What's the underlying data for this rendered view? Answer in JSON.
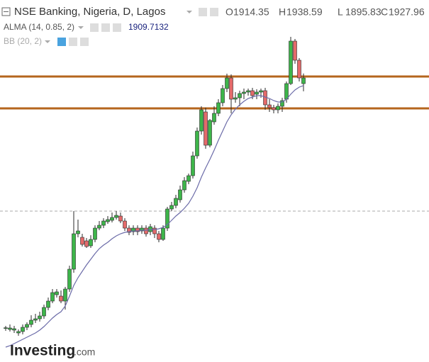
{
  "chart_data": {
    "type": "candlestick",
    "title": "NSE Banking, Nigeria, D, Lagos",
    "ohlc_labels": [
      "O",
      "H",
      "L",
      "C"
    ],
    "open": [
      1327.9,
      1324.5,
      1322.8,
      1316,
      1319.4,
      1329.6,
      1336.4,
      1346.6,
      1350,
      1356.8,
      1377.2,
      1392.5,
      1407.8,
      1404.4,
      1392.5,
      1421.4,
      1469,
      1554,
      1545.5,
      1537,
      1525.1,
      1540.4,
      1567.6,
      1574.4,
      1582.9,
      1586.3,
      1593.1,
      1596.5,
      1584.6,
      1567.6,
      1559.1,
      1567.6,
      1560.8,
      1567.6,
      1559.1,
      1567.6,
      1554,
      1540.4,
      1567.6,
      1613.5,
      1622,
      1635.6,
      1659.4,
      1679.8,
      1693.4,
      1741,
      1800.5,
      1846.4,
      1766.5,
      1822.6,
      1843,
      1868.5,
      1902.5,
      1928,
      1877,
      1880.4,
      1890.6,
      1894,
      1897.4,
      1888.9,
      1894,
      1897.4,
      1863.4,
      1856.6,
      1851.5,
      1860,
      1877,
      1914.4,
      2016.4,
      1970.5,
      1914.35
    ],
    "high": [
      1333,
      1336.4,
      1333,
      1324.5,
      1336.4,
      1341.5,
      1358.5,
      1361.9,
      1367,
      1384,
      1401,
      1421.4,
      1421.4,
      1418,
      1426.5,
      1477.5,
      1608.4,
      1588,
      1554,
      1543.8,
      1550.6,
      1574.4,
      1584.6,
      1591.4,
      1596.5,
      1605,
      1608.4,
      1605,
      1591.4,
      1574.4,
      1574.4,
      1574.4,
      1574.4,
      1574.4,
      1577.8,
      1574.4,
      1560.8,
      1574.4,
      1618.6,
      1630.5,
      1647.5,
      1669.6,
      1690,
      1698.5,
      1751.2,
      1809,
      1860,
      1856.6,
      1829.4,
      1860,
      1877,
      1911,
      1938.2,
      1936.5,
      1894,
      1897.4,
      1902.5,
      1902.5,
      1904.2,
      1900.8,
      1902.5,
      1904.2,
      1877,
      1863.4,
      1866.8,
      1880.4,
      1919.5,
      2026.6,
      2021.5,
      1975.6,
      1938.59
    ],
    "low": [
      1321.1,
      1319.4,
      1316,
      1309.2,
      1312.6,
      1322.8,
      1329.6,
      1339.8,
      1343.2,
      1350,
      1370.4,
      1387.4,
      1401,
      1387.4,
      1372.1,
      1414.6,
      1460.5,
      1545.5,
      1523.4,
      1520,
      1520,
      1533.6,
      1562.5,
      1567.6,
      1577.8,
      1581.2,
      1588,
      1579.5,
      1560.8,
      1550.6,
      1550.6,
      1550.6,
      1554,
      1547.2,
      1550.6,
      1543.8,
      1533.6,
      1537,
      1560.8,
      1608.4,
      1615.2,
      1628.8,
      1652.6,
      1673,
      1686.6,
      1734.2,
      1792,
      1758,
      1761.4,
      1815.8,
      1836.2,
      1860,
      1894,
      1843,
      1868.5,
      1860,
      1877,
      1885.5,
      1877,
      1877,
      1880.4,
      1851.5,
      1846.4,
      1843,
      1843,
      1846.4,
      1868.5,
      1911,
      1962,
      1919.5,
      1895.83
    ],
    "close": [
      1328.5,
      1327.9,
      1326.2,
      1319.4,
      1329.6,
      1336.4,
      1346.6,
      1350,
      1356.8,
      1377.2,
      1392.5,
      1412.9,
      1414.6,
      1392.5,
      1421.4,
      1469,
      1554,
      1560.8,
      1528.5,
      1523.4,
      1540.4,
      1567.6,
      1574.4,
      1584.6,
      1588,
      1593.1,
      1598.2,
      1584.6,
      1567.6,
      1557.4,
      1567.6,
      1559.1,
      1567.6,
      1554,
      1571,
      1554,
      1540.4,
      1567.6,
      1613.5,
      1622,
      1639,
      1659.4,
      1681.5,
      1693.4,
      1741,
      1800.5,
      1851.5,
      1766.5,
      1826,
      1843,
      1868.5,
      1902.5,
      1928,
      1877,
      1880.4,
      1890.6,
      1894,
      1897.4,
      1885.5,
      1894,
      1897.4,
      1863.4,
      1856.6,
      1851.5,
      1860,
      1873.6,
      1914.4,
      2016.4,
      1970.5,
      1928,
      1927.96
    ],
    "up_color": "#3db54a",
    "down_color": "#e46a6a",
    "outline_color": "#2b2b2b",
    "overlays": [
      {
        "name": "ALMA (14, 0.85, 2)",
        "color": "#6b6ba8",
        "values": [
          1282,
          1285.4,
          1290.5,
          1295.6,
          1300.7,
          1305.8,
          1310.9,
          1316,
          1322.8,
          1331.3,
          1341.5,
          1351.7,
          1360.2,
          1367,
          1380.6,
          1404.4,
          1429.9,
          1448.6,
          1463.9,
          1479.2,
          1492.8,
          1506.4,
          1518.3,
          1526.8,
          1533.6,
          1542.1,
          1548.9,
          1554,
          1557.4,
          1559.1,
          1560.8,
          1560.8,
          1562.5,
          1562.5,
          1564.2,
          1564.2,
          1565.9,
          1569.3,
          1576.1,
          1586.3,
          1596.5,
          1605,
          1615.2,
          1627.1,
          1644.1,
          1664.5,
          1690,
          1712.1,
          1732.5,
          1754.6,
          1778.4,
          1800.5,
          1822.6,
          1839.6,
          1853.2,
          1863.4,
          1871.9,
          1878.7,
          1882.1,
          1885.5,
          1885.5,
          1882.1,
          1878.7,
          1873.6,
          1870.2,
          1870.2,
          1877,
          1888.9,
          1899.1,
          1905.9,
          1909.7132
        ]
      }
    ],
    "indicators": [
      {
        "name": "BB (20, 2)"
      }
    ],
    "hlines": [
      {
        "value": 1931.4,
        "color": "#b5651d",
        "style": "solid"
      },
      {
        "value": 1854.9,
        "color": "#b5651d",
        "style": "solid"
      },
      {
        "value": 1608.4,
        "color": "#aaaaaa",
        "style": "dashed"
      }
    ],
    "ylim": [
      1246.3,
      2115
    ]
  },
  "watermark": {
    "brand": "Investing",
    "suffix": ".com"
  }
}
